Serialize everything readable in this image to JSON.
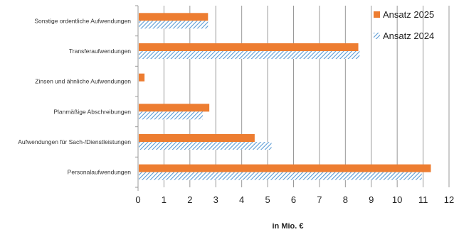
{
  "chart_data": {
    "type": "bar",
    "orientation": "horizontal",
    "categories": [
      "Sonstige ordentliche Aufwendungen",
      "Transferaufwendungen",
      "Zinsen und ähnliche Aufwendungen",
      "Planmäßige Abschreibungen",
      "Aufwendungen für Sach-/Dienstleistungen",
      "Personalaufwendungen"
    ],
    "series": [
      {
        "name": "Ansatz 2025",
        "color": "#ed7d31",
        "pattern": "solid",
        "values": [
          2.7,
          8.5,
          0.25,
          2.75,
          4.5,
          11.3
        ]
      },
      {
        "name": "Ansatz 2024",
        "color": "#5b9bd5",
        "pattern": "hatched",
        "values": [
          2.7,
          8.55,
          0,
          2.5,
          5.15,
          10.95
        ]
      }
    ],
    "xlabel": "in Mio. €",
    "xlim": [
      0,
      12
    ],
    "xticks": [
      "0",
      "1",
      "2",
      "3",
      "4",
      "5",
      "6",
      "7",
      "8",
      "9",
      "10",
      "11",
      "12"
    ],
    "grid": "vertical",
    "legend": "top-right"
  }
}
